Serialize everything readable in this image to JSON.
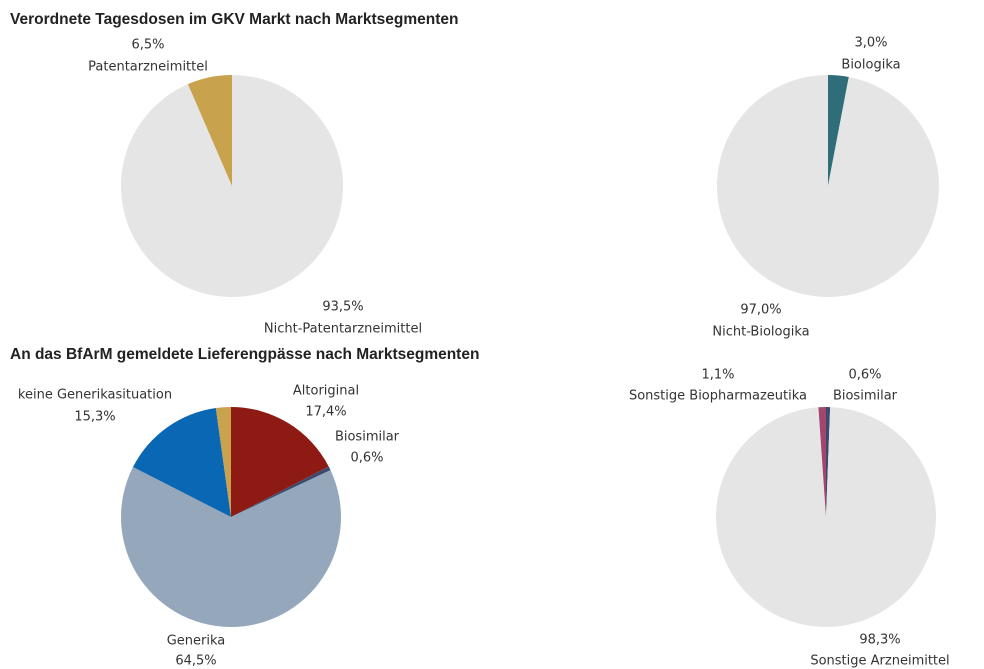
{
  "chart_data": [
    {
      "type": "pie",
      "title": "Verordnete Tagesdosen im GKV Markt nach Marktsegmenten",
      "categories": [
        "Nicht-Patentarzneimittel",
        "Patentarzneimittel"
      ],
      "values": [
        93.5,
        6.5
      ],
      "value_labels": [
        "93,5%",
        "6,5%"
      ],
      "colors": [
        "#e5e5e5",
        "#c9a24e"
      ]
    },
    {
      "type": "pie",
      "categories": [
        "Biologika",
        "Nicht-Biologika"
      ],
      "values": [
        3.0,
        97.0
      ],
      "value_labels": [
        "3,0%",
        "97,0%"
      ],
      "colors": [
        "#2f6e78",
        "#e5e5e5"
      ]
    },
    {
      "type": "pie",
      "title": "An das BfArM gemeldete Lieferengpässe nach Marktsegmenten",
      "categories": [
        "Altoriginal",
        "Biosimilar",
        "Generika",
        "keine Generikasituation",
        null
      ],
      "values": [
        17.4,
        0.6,
        64.5,
        15.3,
        2.2
      ],
      "value_labels": [
        "17,4%",
        "0,6%",
        "64,5%",
        "15,3%",
        null
      ],
      "colors": [
        "#8e1a14",
        "#3b4a6e",
        "#94a7bb",
        "#0a67b3",
        "#c9a24e"
      ]
    },
    {
      "type": "pie",
      "categories": [
        "Biosimilar",
        "Sonstige Arzneimittel",
        "Sonstige Biopharmazeutika"
      ],
      "values": [
        0.6,
        98.3,
        1.1
      ],
      "value_labels": [
        "0,6%",
        "98,3%",
        "1,1%"
      ],
      "colors": [
        "#3b4a6e",
        "#e5e5e5",
        "#a3466e"
      ]
    }
  ]
}
